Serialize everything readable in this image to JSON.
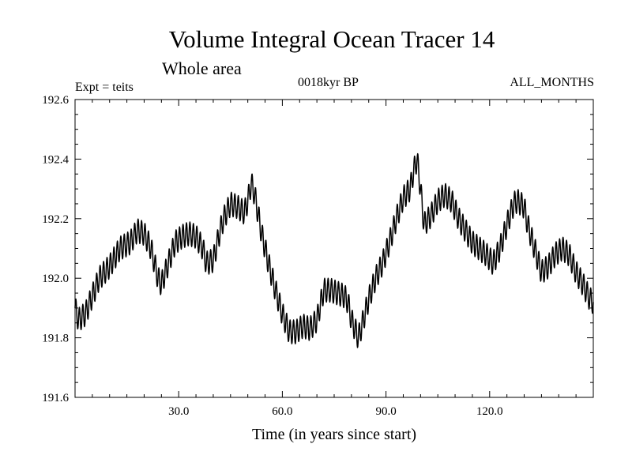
{
  "header": {
    "title": "Volume Integral Ocean Tracer 14",
    "subtitle": "Whole area",
    "expt": "Expt = teits",
    "period": "0018kyr BP",
    "months": "ALL_MONTHS"
  },
  "chart_data": {
    "type": "line",
    "title": "Volume Integral Ocean Tracer 14",
    "subtitle": "Whole area",
    "xlabel": "Time (in years since start)",
    "ylabel": "",
    "xlim": [
      0,
      150
    ],
    "ylim": [
      191.6,
      192.6
    ],
    "xticks": [
      30,
      60,
      90,
      120
    ],
    "xtick_labels": [
      "30.0",
      "60.0",
      "90.0",
      "120.0"
    ],
    "yticks": [
      191.6,
      191.8,
      192.0,
      192.2,
      192.4,
      192.6
    ],
    "ytick_labels": [
      "191.6",
      "191.8",
      "192.0",
      "192.2",
      "192.4",
      "192.6"
    ],
    "grid": false,
    "line_color": "#000000",
    "seasonal_cycle_amplitude": 0.04,
    "series": [
      {
        "name": "",
        "x": [
          0,
          1,
          3,
          5,
          7,
          10,
          13,
          16,
          18,
          20,
          22,
          24,
          25,
          27,
          29,
          31,
          33,
          35,
          37,
          38,
          40,
          42,
          43,
          45,
          47,
          49,
          50,
          51,
          52,
          54,
          56,
          58,
          60,
          62,
          64,
          66,
          68,
          70,
          72,
          74,
          76,
          78,
          79,
          80,
          82,
          83,
          85,
          87,
          89,
          91,
          93,
          95,
          97,
          98,
          99,
          100,
          101,
          103,
          105,
          107,
          109,
          111,
          113,
          115,
          117,
          119,
          121,
          123,
          125,
          127,
          128,
          130,
          131,
          133,
          135,
          137,
          139,
          141,
          143,
          145,
          147,
          149,
          150
        ],
        "y": [
          191.9,
          191.86,
          191.88,
          191.94,
          192.0,
          192.04,
          192.1,
          192.12,
          192.16,
          192.15,
          192.1,
          192.0,
          191.98,
          192.05,
          192.12,
          192.14,
          192.15,
          192.14,
          192.1,
          192.05,
          192.06,
          192.16,
          192.2,
          192.25,
          192.24,
          192.22,
          192.26,
          192.32,
          192.28,
          192.15,
          192.05,
          191.96,
          191.88,
          191.82,
          191.82,
          191.84,
          191.83,
          191.86,
          191.96,
          191.96,
          191.95,
          191.94,
          191.92,
          191.86,
          191.8,
          191.84,
          191.93,
          192.0,
          192.05,
          192.12,
          192.2,
          192.27,
          192.3,
          192.36,
          192.4,
          192.3,
          192.18,
          192.21,
          192.26,
          192.28,
          192.26,
          192.2,
          192.16,
          192.12,
          192.1,
          192.08,
          192.05,
          192.1,
          192.18,
          192.25,
          192.26,
          192.24,
          192.18,
          192.1,
          192.02,
          192.04,
          192.08,
          192.1,
          192.08,
          192.02,
          191.98,
          191.93,
          191.92
        ]
      }
    ]
  }
}
